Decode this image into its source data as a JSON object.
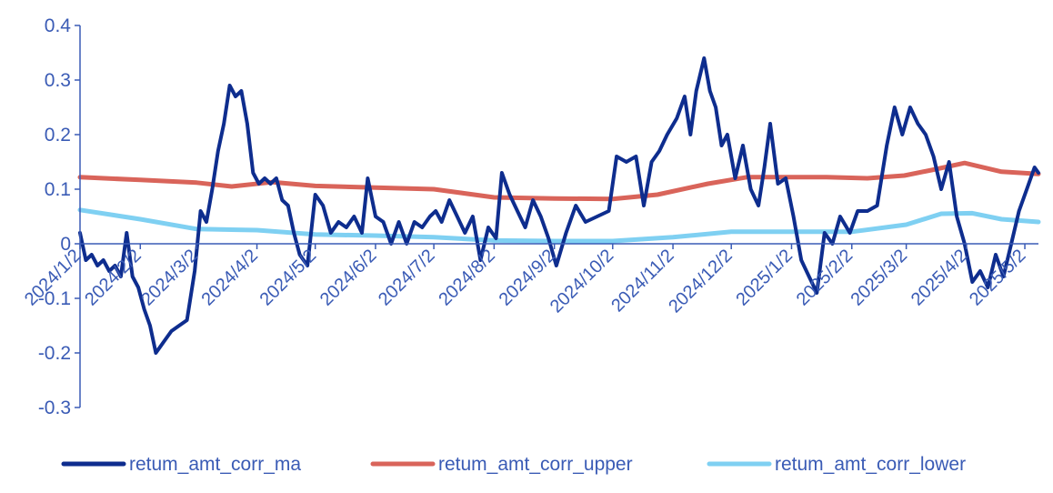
{
  "chart_data": {
    "type": "line",
    "title": "",
    "xlabel": "",
    "ylabel": "",
    "ylim": [
      -0.3,
      0.4
    ],
    "y_ticks": [
      0.4,
      0.3,
      0.2,
      0.1,
      0,
      -0.1,
      -0.2,
      -0.3
    ],
    "y_tick_labels": [
      "0.4",
      "0.3",
      "0.2",
      "0.1",
      "0",
      "-0.1",
      "-0.2",
      "-0.3"
    ],
    "x_start": "2024/1/2",
    "x_end": "2025/5/9",
    "x_tick_labels": [
      "2024/1/2",
      "2024/2/2",
      "2024/3/2",
      "2024/4/2",
      "2024/5/2",
      "2024/6/2",
      "2024/7/2",
      "2024/8/2",
      "2024/9/2",
      "2024/10/2",
      "2024/11/2",
      "2024/12/2",
      "2025/1/2",
      "2025/2/2",
      "2025/3/2",
      "2025/4/2",
      "2025/5/2"
    ],
    "grid": false,
    "legend_position": "bottom",
    "series": [
      {
        "name": "retum_amt_corr_ma",
        "color": "#0e2d8e",
        "points": [
          [
            "2024/1/2",
            0.02
          ],
          [
            "2024/1/5",
            -0.03
          ],
          [
            "2024/1/8",
            -0.02
          ],
          [
            "2024/1/11",
            -0.04
          ],
          [
            "2024/1/14",
            -0.03
          ],
          [
            "2024/1/17",
            -0.05
          ],
          [
            "2024/1/20",
            -0.04
          ],
          [
            "2024/1/23",
            -0.06
          ],
          [
            "2024/1/26",
            0.02
          ],
          [
            "2024/1/29",
            -0.06
          ],
          [
            "2024/2/1",
            -0.08
          ],
          [
            "2024/2/4",
            -0.12
          ],
          [
            "2024/2/7",
            -0.15
          ],
          [
            "2024/2/10",
            -0.2
          ],
          [
            "2024/2/14",
            -0.18
          ],
          [
            "2024/2/18",
            -0.16
          ],
          [
            "2024/2/22",
            -0.15
          ],
          [
            "2024/2/26",
            -0.14
          ],
          [
            "2024/3/1",
            -0.05
          ],
          [
            "2024/3/4",
            0.06
          ],
          [
            "2024/3/7",
            0.04
          ],
          [
            "2024/3/10",
            0.1
          ],
          [
            "2024/3/13",
            0.17
          ],
          [
            "2024/3/16",
            0.22
          ],
          [
            "2024/3/19",
            0.29
          ],
          [
            "2024/3/22",
            0.27
          ],
          [
            "2024/3/25",
            0.28
          ],
          [
            "2024/3/28",
            0.22
          ],
          [
            "2024/3/31",
            0.13
          ],
          [
            "2024/4/3",
            0.11
          ],
          [
            "2024/4/6",
            0.12
          ],
          [
            "2024/4/9",
            0.11
          ],
          [
            "2024/4/12",
            0.12
          ],
          [
            "2024/4/15",
            0.08
          ],
          [
            "2024/4/18",
            0.07
          ],
          [
            "2024/4/21",
            0.02
          ],
          [
            "2024/4/24",
            -0.02
          ],
          [
            "2024/4/28",
            -0.04
          ],
          [
            "2024/5/2",
            0.09
          ],
          [
            "2024/5/6",
            0.07
          ],
          [
            "2024/5/10",
            0.02
          ],
          [
            "2024/5/14",
            0.04
          ],
          [
            "2024/5/18",
            0.03
          ],
          [
            "2024/5/22",
            0.05
          ],
          [
            "2024/5/26",
            0.02
          ],
          [
            "2024/5/29",
            0.12
          ],
          [
            "2024/6/2",
            0.05
          ],
          [
            "2024/6/6",
            0.04
          ],
          [
            "2024/6/10",
            0.0
          ],
          [
            "2024/6/14",
            0.04
          ],
          [
            "2024/6/18",
            0.0
          ],
          [
            "2024/6/22",
            0.04
          ],
          [
            "2024/6/26",
            0.03
          ],
          [
            "2024/6/30",
            0.05
          ],
          [
            "2024/7/3",
            0.06
          ],
          [
            "2024/7/6",
            0.04
          ],
          [
            "2024/7/10",
            0.08
          ],
          [
            "2024/7/14",
            0.05
          ],
          [
            "2024/7/18",
            0.02
          ],
          [
            "2024/7/22",
            0.05
          ],
          [
            "2024/7/26",
            -0.03
          ],
          [
            "2024/7/30",
            0.03
          ],
          [
            "2024/8/3",
            0.01
          ],
          [
            "2024/8/6",
            0.13
          ],
          [
            "2024/8/10",
            0.09
          ],
          [
            "2024/8/14",
            0.06
          ],
          [
            "2024/8/18",
            0.03
          ],
          [
            "2024/8/22",
            0.08
          ],
          [
            "2024/8/26",
            0.05
          ],
          [
            "2024/8/30",
            0.01
          ],
          [
            "2024/9/3",
            -0.04
          ],
          [
            "2024/9/8",
            0.02
          ],
          [
            "2024/9/13",
            0.07
          ],
          [
            "2024/9/18",
            0.04
          ],
          [
            "2024/9/24",
            0.05
          ],
          [
            "2024/9/30",
            0.06
          ],
          [
            "2024/10/4",
            0.16
          ],
          [
            "2024/10/9",
            0.15
          ],
          [
            "2024/10/14",
            0.16
          ],
          [
            "2024/10/18",
            0.07
          ],
          [
            "2024/10/22",
            0.15
          ],
          [
            "2024/10/26",
            0.17
          ],
          [
            "2024/10/30",
            0.2
          ],
          [
            "2024/11/4",
            0.23
          ],
          [
            "2024/11/8",
            0.27
          ],
          [
            "2024/11/11",
            0.2
          ],
          [
            "2024/11/14",
            0.28
          ],
          [
            "2024/11/18",
            0.34
          ],
          [
            "2024/11/21",
            0.28
          ],
          [
            "2024/11/24",
            0.25
          ],
          [
            "2024/11/27",
            0.18
          ],
          [
            "2024/11/30",
            0.2
          ],
          [
            "2024/12/4",
            0.12
          ],
          [
            "2024/12/8",
            0.18
          ],
          [
            "2024/12/12",
            0.1
          ],
          [
            "2024/12/16",
            0.07
          ],
          [
            "2024/12/19",
            0.14
          ],
          [
            "2024/12/22",
            0.22
          ],
          [
            "2024/12/26",
            0.11
          ],
          [
            "2024/12/30",
            0.12
          ],
          [
            "2025/1/3",
            0.05
          ],
          [
            "2025/1/7",
            -0.03
          ],
          [
            "2025/1/11",
            -0.06
          ],
          [
            "2025/1/15",
            -0.09
          ],
          [
            "2025/1/19",
            0.02
          ],
          [
            "2025/1/23",
            0.0
          ],
          [
            "2025/1/27",
            0.05
          ],
          [
            "2025/2/1",
            0.02
          ],
          [
            "2025/2/5",
            0.06
          ],
          [
            "2025/2/10",
            0.06
          ],
          [
            "2025/2/15",
            0.07
          ],
          [
            "2025/2/20",
            0.18
          ],
          [
            "2025/2/24",
            0.25
          ],
          [
            "2025/2/28",
            0.2
          ],
          [
            "2025/3/4",
            0.25
          ],
          [
            "2025/3/8",
            0.22
          ],
          [
            "2025/3/12",
            0.2
          ],
          [
            "2025/3/16",
            0.16
          ],
          [
            "2025/3/20",
            0.1
          ],
          [
            "2025/3/24",
            0.15
          ],
          [
            "2025/3/28",
            0.05
          ],
          [
            "2025/4/1",
            0.0
          ],
          [
            "2025/4/5",
            -0.07
          ],
          [
            "2025/4/9",
            -0.05
          ],
          [
            "2025/4/13",
            -0.08
          ],
          [
            "2025/4/17",
            -0.02
          ],
          [
            "2025/4/21",
            -0.06
          ],
          [
            "2025/4/25",
            0.0
          ],
          [
            "2025/4/29",
            0.06
          ],
          [
            "2025/5/3",
            0.1
          ],
          [
            "2025/5/7",
            0.14
          ],
          [
            "2025/5/9",
            0.13
          ]
        ]
      },
      {
        "name": "retum_amt_corr_upper",
        "color": "#d9645a",
        "points": [
          [
            "2024/1/2",
            0.122
          ],
          [
            "2024/2/2",
            0.117
          ],
          [
            "2024/3/2",
            0.112
          ],
          [
            "2024/3/20",
            0.105
          ],
          [
            "2024/4/10",
            0.113
          ],
          [
            "2024/5/2",
            0.106
          ],
          [
            "2024/6/2",
            0.103
          ],
          [
            "2024/7/2",
            0.1
          ],
          [
            "2024/8/2",
            0.085
          ],
          [
            "2024/9/2",
            0.083
          ],
          [
            "2024/10/2",
            0.082
          ],
          [
            "2024/10/25",
            0.09
          ],
          [
            "2024/11/20",
            0.11
          ],
          [
            "2024/12/10",
            0.122
          ],
          [
            "2025/1/2",
            0.122
          ],
          [
            "2025/1/20",
            0.122
          ],
          [
            "2025/2/10",
            0.12
          ],
          [
            "2025/3/1",
            0.125
          ],
          [
            "2025/3/15",
            0.135
          ],
          [
            "2025/4/1",
            0.148
          ],
          [
            "2025/4/20",
            0.132
          ],
          [
            "2025/5/9",
            0.128
          ]
        ]
      },
      {
        "name": "retum_amt_corr_lower",
        "color": "#7fd0f2",
        "points": [
          [
            "2024/1/2",
            0.062
          ],
          [
            "2024/2/2",
            0.045
          ],
          [
            "2024/3/2",
            0.027
          ],
          [
            "2024/4/2",
            0.025
          ],
          [
            "2024/5/2",
            0.017
          ],
          [
            "2024/6/2",
            0.015
          ],
          [
            "2024/7/2",
            0.012
          ],
          [
            "2024/8/2",
            0.006
          ],
          [
            "2024/9/2",
            0.005
          ],
          [
            "2024/10/2",
            0.005
          ],
          [
            "2024/11/2",
            0.012
          ],
          [
            "2024/12/2",
            0.022
          ],
          [
            "2025/1/2",
            0.022
          ],
          [
            "2025/2/2",
            0.022
          ],
          [
            "2025/3/2",
            0.035
          ],
          [
            "2025/3/20",
            0.055
          ],
          [
            "2025/4/5",
            0.056
          ],
          [
            "2025/4/20",
            0.045
          ],
          [
            "2025/5/9",
            0.04
          ]
        ]
      }
    ]
  }
}
